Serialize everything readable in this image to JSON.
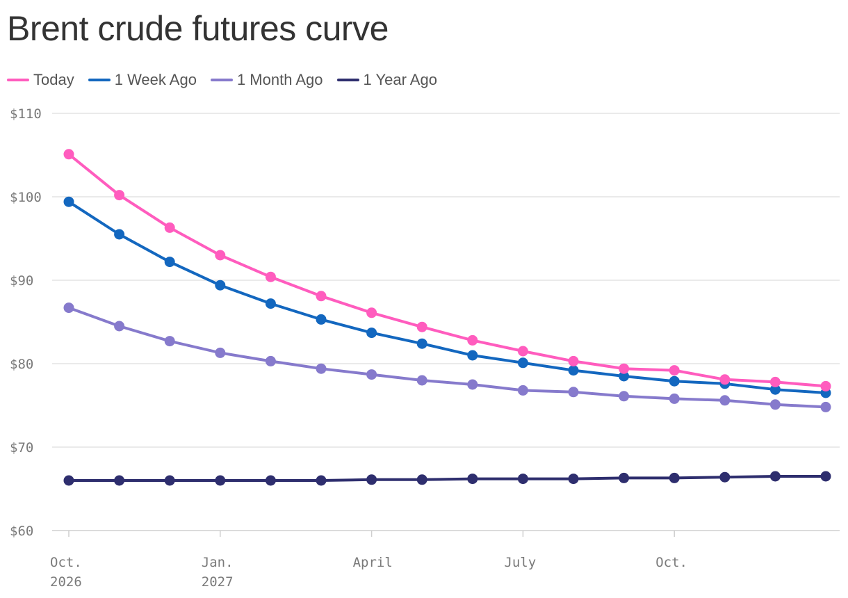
{
  "chart_data": {
    "type": "line",
    "title": "Brent crude futures curve",
    "xlabel": "",
    "ylabel": "",
    "ylim": [
      60,
      110
    ],
    "y_ticks": [
      {
        "value": 110,
        "label": "$110"
      },
      {
        "value": 100,
        "label": "$100"
      },
      {
        "value": 90,
        "label": "$90"
      },
      {
        "value": 80,
        "label": "$80"
      },
      {
        "value": 70,
        "label": "$70"
      },
      {
        "value": 60,
        "label": "$60"
      }
    ],
    "x": [
      "2026-10",
      "2026-11",
      "2026-12",
      "2027-01",
      "2027-02",
      "2027-03",
      "2027-04",
      "2027-05",
      "2027-06",
      "2027-07",
      "2027-08",
      "2027-09",
      "2027-10",
      "2027-11",
      "2027-12",
      "2028-01"
    ],
    "x_ticks": [
      {
        "x": "2026-10",
        "line1": "Oct.",
        "line2": "2026"
      },
      {
        "x": "2027-01",
        "line1": "Jan.",
        "line2": "2027"
      },
      {
        "x": "2027-04",
        "line1": "April",
        "line2": ""
      },
      {
        "x": "2027-07",
        "line1": "July",
        "line2": ""
      },
      {
        "x": "2027-10",
        "line1": "Oct.",
        "line2": ""
      }
    ],
    "grid": true,
    "legend": "top-left",
    "series": [
      {
        "name": "Today",
        "color": "#ff5cbe",
        "values": [
          105.1,
          100.2,
          96.3,
          93.0,
          90.4,
          88.1,
          86.1,
          84.4,
          82.8,
          81.5,
          80.3,
          79.4,
          79.2,
          78.1,
          77.8,
          77.3
        ]
      },
      {
        "name": "1 Week Ago",
        "color": "#1367bf",
        "values": [
          99.4,
          95.5,
          92.2,
          89.4,
          87.2,
          85.3,
          83.7,
          82.4,
          81.0,
          80.1,
          79.2,
          78.5,
          77.9,
          77.6,
          76.9,
          76.5
        ]
      },
      {
        "name": "1 Month Ago",
        "color": "#867acc",
        "values": [
          86.7,
          84.5,
          82.7,
          81.3,
          80.3,
          79.4,
          78.7,
          78.0,
          77.5,
          76.8,
          76.6,
          76.1,
          75.8,
          75.6,
          75.1,
          74.8
        ]
      },
      {
        "name": "1 Year Ago",
        "color": "#2e2e6e",
        "values": [
          66.0,
          66.0,
          66.0,
          66.0,
          66.0,
          66.0,
          66.1,
          66.1,
          66.2,
          66.2,
          66.2,
          66.3,
          66.3,
          66.4,
          66.5,
          66.5
        ]
      }
    ]
  }
}
